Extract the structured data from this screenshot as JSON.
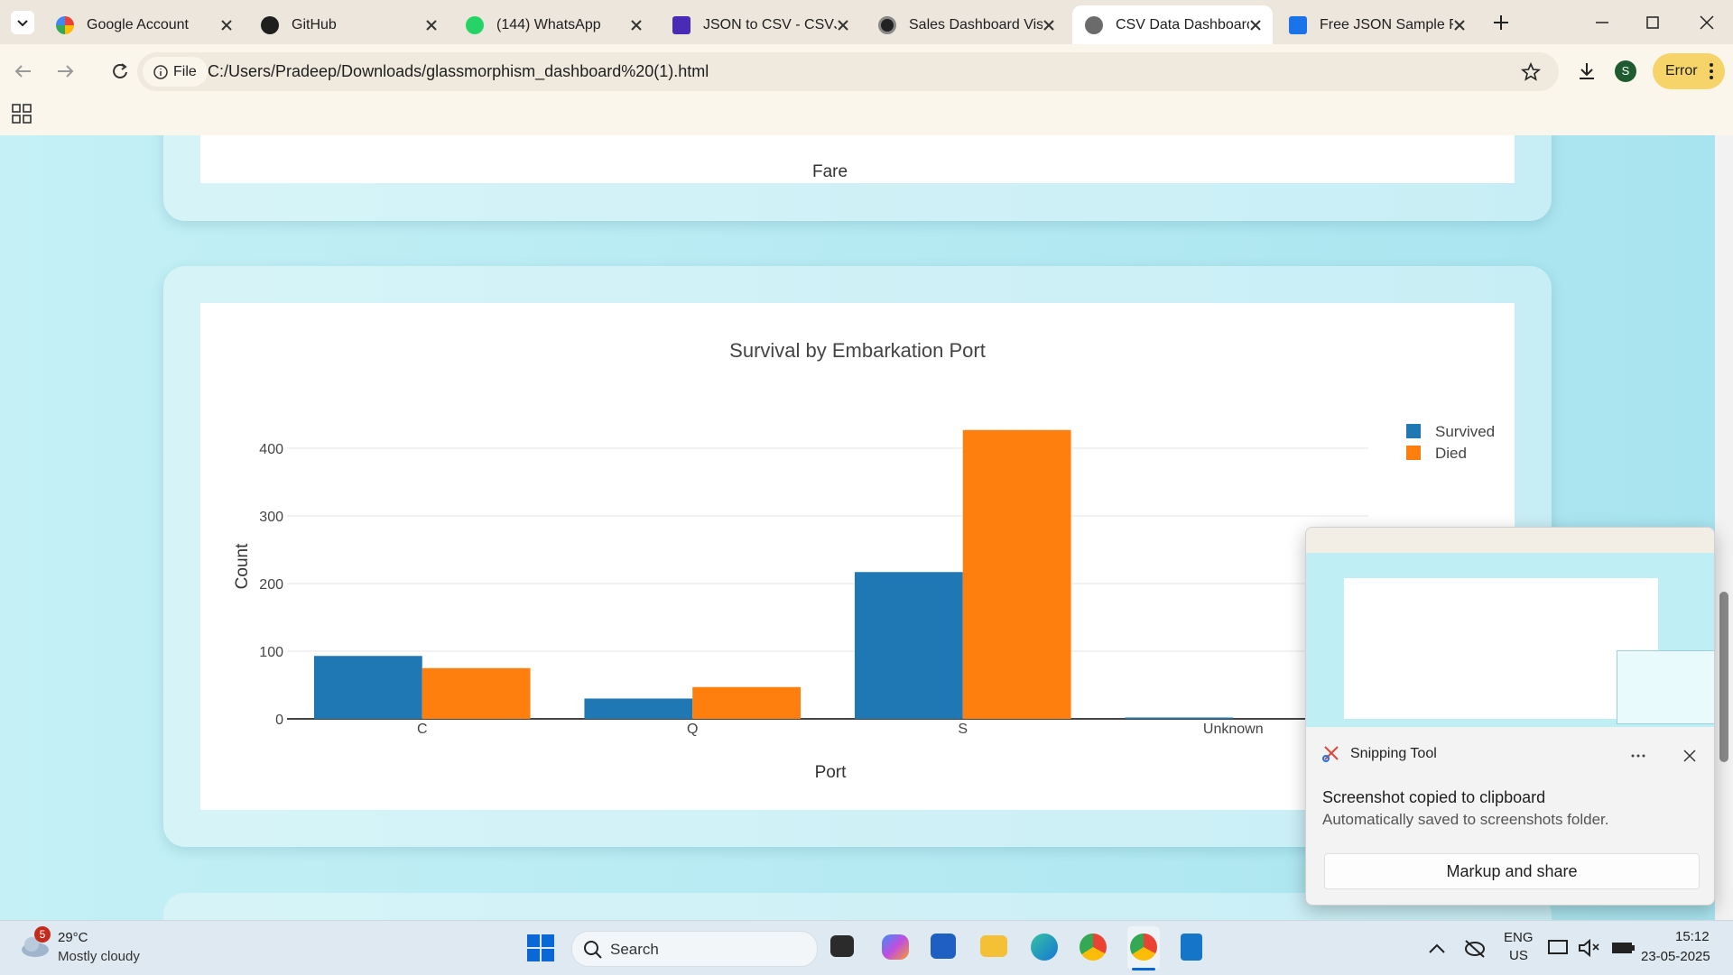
{
  "browser": {
    "tabs": [
      "Google Account",
      "GitHub",
      "(144) WhatsApp",
      "JSON to CSV - CSVJS",
      "Sales Dashboard Visu",
      "CSV Data Dashboard",
      "Free JSON Sample Fi"
    ],
    "address_chip": "File",
    "url": "C:/Users/Pradeep/Downloads/glassmorphism_dashboard%20(1).html",
    "profile_initial": "S",
    "error_button": "Error"
  },
  "dashboard": {
    "previous_chart_x_label": "Fare"
  },
  "chart_data": {
    "type": "bar",
    "title": "Survival by Embarkation Port",
    "x_label": "Port",
    "y_label": "Count",
    "categories": [
      "C",
      "Q",
      "S",
      "Unknown"
    ],
    "series": [
      {
        "name": "Survived",
        "color": "#1f77b4",
        "values": [
          93,
          30,
          217,
          2
        ]
      },
      {
        "name": "Died",
        "color": "#ff7f0e",
        "values": [
          75,
          47,
          427,
          0
        ]
      }
    ],
    "ylim": [
      0,
      450
    ],
    "yticks": [
      0,
      100,
      200,
      300,
      400
    ],
    "grid": true,
    "legend": "top-right"
  },
  "notification": {
    "app": "Snipping Tool",
    "title": "Screenshot copied to clipboard",
    "message": "Automatically saved to screenshots folder.",
    "button": "Markup and share"
  },
  "taskbar": {
    "weather_badge": "5",
    "temperature": "29°C",
    "condition": "Mostly cloudy",
    "search": "Search",
    "language": "ENG",
    "region": "US",
    "time": "15:12",
    "date": "23-05-2025"
  }
}
